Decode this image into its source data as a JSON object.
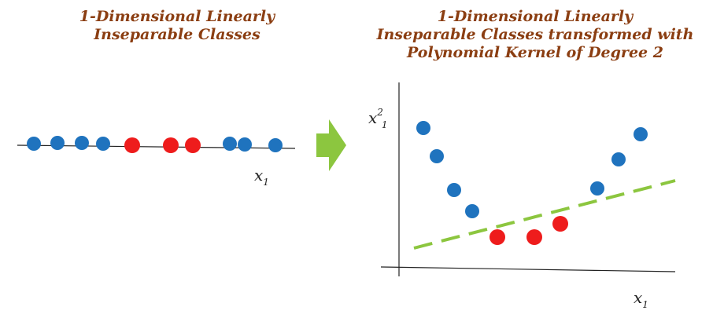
{
  "left_title": {
    "line1": "1-Dimensional Linearly",
    "line2": "Inseparable Classes"
  },
  "right_title": {
    "line1": "1-Dimensional Linearly",
    "line2": "Inseparable Classes transformed with",
    "line3": "Polynomial Kernel of Degree 2"
  },
  "left_axis_label": {
    "base": "x",
    "subscript": "1"
  },
  "right_axis_x_label": {
    "base": "x",
    "subscript": "1"
  },
  "right_axis_y_label": {
    "base": "x",
    "superscript": "2",
    "subscript": "1"
  },
  "colors": {
    "title": "#8B3E12",
    "blue_class": "#1F73BE",
    "red_class": "#EE1C1C",
    "separator": "#8CC63F",
    "arrow": "#8CC63F"
  },
  "icons": {
    "arrow": "right-arrow-icon"
  }
}
